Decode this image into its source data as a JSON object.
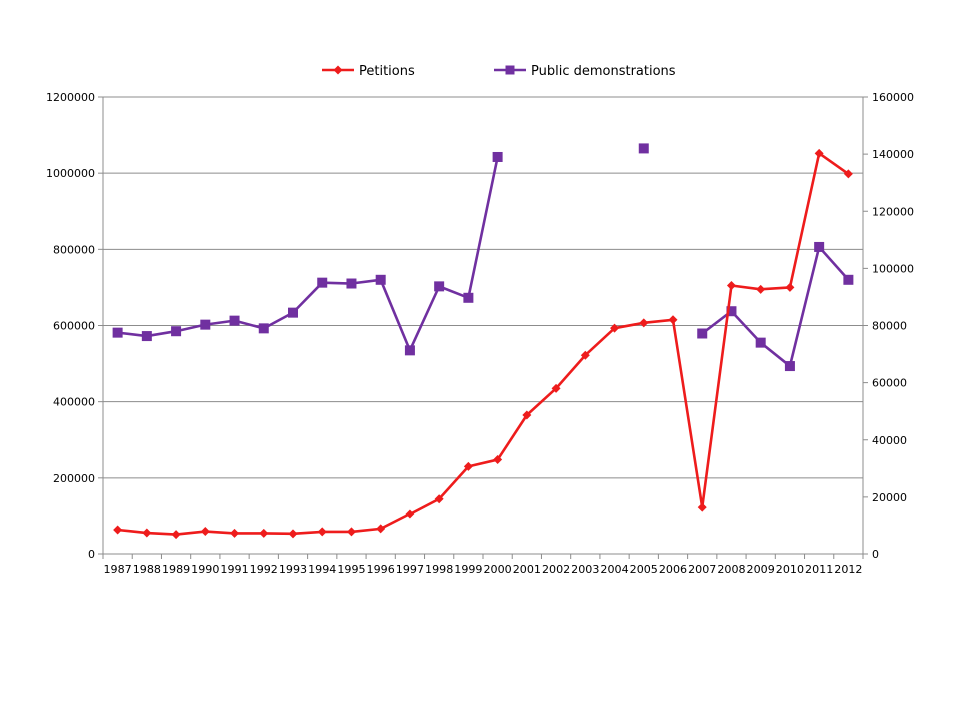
{
  "chart_data": {
    "type": "line",
    "title": "",
    "xlabel": "",
    "ylabel": "",
    "y2label": "",
    "categories": [
      "1987",
      "1988",
      "1989",
      "1990",
      "1991",
      "1992",
      "1993",
      "1994",
      "1995",
      "1996",
      "1997",
      "1998",
      "1999",
      "2000",
      "2001",
      "2002",
      "2003",
      "2004",
      "2005",
      "2006",
      "2007",
      "2008",
      "2009",
      "2010",
      "2011",
      "2012"
    ],
    "ylim": [
      0,
      1200000
    ],
    "yticks": [
      0,
      200000,
      400000,
      600000,
      800000,
      1000000,
      1200000
    ],
    "y2lim": [
      0,
      160000
    ],
    "y2ticks": [
      0,
      20000,
      40000,
      60000,
      80000,
      100000,
      120000,
      140000,
      160000
    ],
    "grid": "horizontal",
    "legend_position": "top",
    "series": [
      {
        "name": "Petitions",
        "axis": "left",
        "color": "#ee1c1c",
        "marker": "diamond",
        "values": [
          63000,
          55000,
          51000,
          59000,
          54000,
          54000,
          53000,
          58000,
          58000,
          66000,
          105000,
          145000,
          230000,
          248000,
          365000,
          435000,
          522000,
          593000,
          607000,
          615000,
          123000,
          705000,
          695000,
          700000,
          1052000,
          998000
        ]
      },
      {
        "name": "Public demonstrations",
        "axis": "right",
        "color": "#7030a0",
        "marker": "square",
        "values": [
          77500,
          76300,
          78000,
          80300,
          81700,
          79000,
          84500,
          95000,
          94700,
          96000,
          71300,
          93700,
          89700,
          139000,
          null,
          null,
          null,
          null,
          142000,
          null,
          77200,
          85000,
          74000,
          65800,
          107500,
          96000
        ]
      }
    ]
  }
}
